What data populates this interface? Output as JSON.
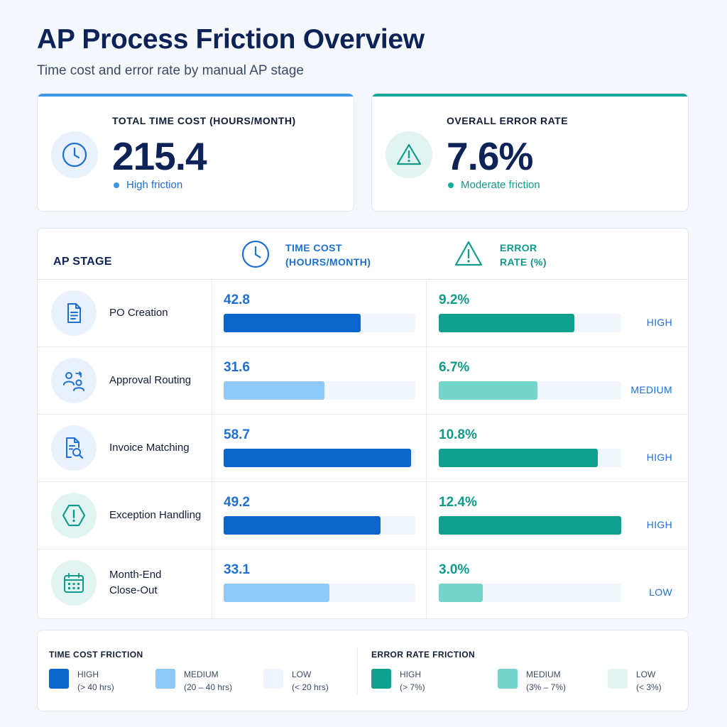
{
  "header": {
    "title": "AP Process Friction Overview",
    "subtitle": "Time cost and error rate by manual AP stage"
  },
  "kpis": [
    {
      "label": "TOTAL TIME COST (HOURS/MONTH)",
      "value": "215.4",
      "status": "High friction",
      "icon": "clock-icon",
      "accent": "#3b96e6"
    },
    {
      "label": "OVERALL ERROR RATE",
      "value": "7.6%",
      "status": "Moderate friction",
      "icon": "warning-triangle-icon",
      "accent": "#17a899"
    }
  ],
  "table": {
    "columns": {
      "stage": "AP STAGE",
      "time_line1": "TIME COST",
      "time_line2": "(HOURS/MONTH)",
      "error_line1": "ERROR",
      "error_line2": "RATE (%)"
    }
  },
  "chart_data": {
    "type": "bar",
    "categories": [
      "PO Creation",
      "Approval Routing",
      "Invoice Matching",
      "Exception Handling",
      "Month-End Close-Out"
    ],
    "series": [
      {
        "name": "TIME COST (HOURS/MONTH)",
        "values": [
          42.8,
          31.6,
          58.7,
          49.2,
          33.1
        ],
        "labels": [
          "42.8",
          "31.6",
          "58.7",
          "49.2",
          "33.1"
        ],
        "friction": [
          "high",
          "medium",
          "high",
          "high",
          "medium"
        ],
        "max": 60
      },
      {
        "name": "ERROR RATE (%)",
        "values": [
          9.2,
          6.7,
          10.8,
          12.4,
          3.0
        ],
        "labels": [
          "9.2%",
          "6.7%",
          "10.8%",
          "12.4%",
          "3.0%"
        ],
        "friction": [
          "high",
          "medium",
          "high",
          "high",
          "medium"
        ],
        "max": 12.4
      }
    ],
    "levels": [
      "HIGH",
      "MEDIUM",
      "HIGH",
      "HIGH",
      "LOW"
    ],
    "stage_icons": [
      "document-icon",
      "approval-users-icon",
      "invoice-search-icon",
      "exception-octagon-icon",
      "calendar-icon"
    ],
    "colors": {
      "time": {
        "high": "#0b66cc",
        "medium": "#8ec9f7",
        "low": "#eef5fc"
      },
      "error": {
        "high": "#0fa08f",
        "medium": "#74d6cb",
        "low": "#e3f4f1"
      }
    }
  },
  "legend": {
    "time": {
      "title": "TIME COST FRICTION",
      "items": [
        {
          "name": "HIGH",
          "range": "(> 40 hrs)",
          "color": "#0b66cc"
        },
        {
          "name": "MEDIUM",
          "range": "(20 – 40 hrs)",
          "color": "#8ec9f7"
        },
        {
          "name": "LOW",
          "range": "(< 20 hrs)",
          "color": "#eef5fc"
        }
      ]
    },
    "error": {
      "title": "ERROR RATE FRICTION",
      "items": [
        {
          "name": "HIGH",
          "range": "(> 7%)",
          "color": "#0fa08f"
        },
        {
          "name": "MEDIUM",
          "range": "(3% – 7%)",
          "color": "#74d6cb"
        },
        {
          "name": "LOW",
          "range": "(< 3%)",
          "color": "#e3f4f1"
        }
      ]
    }
  }
}
